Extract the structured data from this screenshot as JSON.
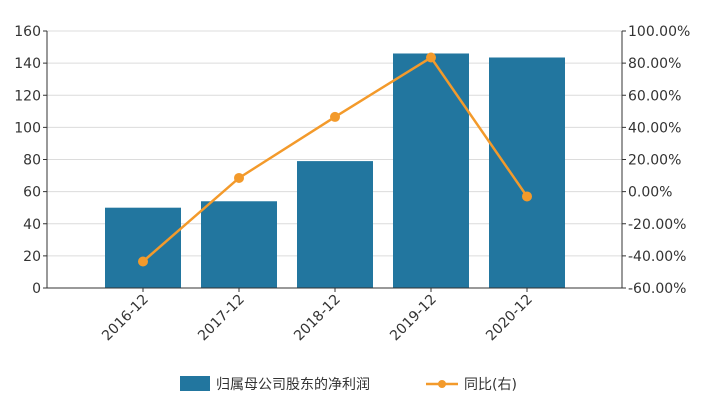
{
  "chart_data": {
    "type": "bar",
    "categories": [
      "2016-12",
      "2017-12",
      "2018-12",
      "2019-12",
      "2020-12"
    ],
    "series": [
      {
        "name": "归属母公司股东的净利润",
        "type": "bar",
        "axis": "left",
        "color": "#22769f",
        "values": [
          50,
          54,
          79,
          146,
          143.5
        ]
      },
      {
        "name": "同比(右)",
        "type": "line",
        "axis": "right",
        "color": "#f39a2b",
        "values": [
          -43.5,
          8.5,
          46.5,
          83.5,
          -3
        ]
      }
    ],
    "y_left": {
      "ylim": [
        0,
        160
      ],
      "ticks": [
        0,
        20,
        40,
        60,
        80,
        100,
        120,
        140,
        160
      ],
      "tick_labels": [
        "0",
        "20",
        "40",
        "60",
        "80",
        "100",
        "120",
        "140",
        "160"
      ]
    },
    "y_right": {
      "ylim": [
        -60,
        100
      ],
      "ticks": [
        -60,
        -40,
        -20,
        0,
        20,
        40,
        60,
        80,
        100
      ],
      "tick_labels": [
        "-60.00%",
        "-40.00%",
        "-20.00%",
        "0.00%",
        "20.00%",
        "40.00%",
        "60.00%",
        "80.00%",
        "100.00%"
      ]
    },
    "grid": true,
    "legend_position": "bottom-center",
    "title": "",
    "xlabel": "",
    "ylabel": ""
  }
}
